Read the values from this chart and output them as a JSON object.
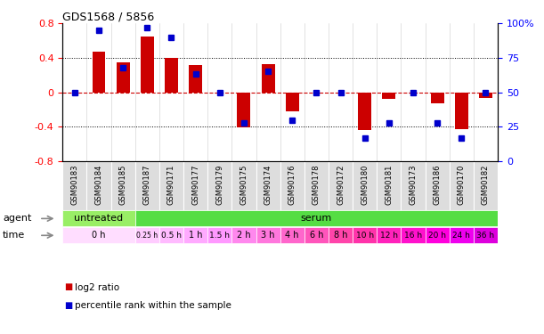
{
  "title": "GDS1568 / 5856",
  "samples": [
    "GSM90183",
    "GSM90184",
    "GSM90185",
    "GSM90187",
    "GSM90171",
    "GSM90177",
    "GSM90179",
    "GSM90175",
    "GSM90174",
    "GSM90176",
    "GSM90178",
    "GSM90172",
    "GSM90180",
    "GSM90181",
    "GSM90173",
    "GSM90186",
    "GSM90170",
    "GSM90182"
  ],
  "log2_ratio": [
    0.0,
    0.47,
    0.35,
    0.65,
    0.4,
    0.32,
    0.0,
    -0.41,
    0.33,
    -0.22,
    0.0,
    0.0,
    -0.44,
    -0.08,
    0.0,
    -0.13,
    -0.43,
    -0.07
  ],
  "percentile": [
    50,
    95,
    68,
    97,
    90,
    63,
    50,
    28,
    65,
    30,
    50,
    50,
    17,
    28,
    50,
    28,
    17,
    50
  ],
  "bar_color": "#cc0000",
  "dot_color": "#0000cc",
  "ylim_left": [
    -0.8,
    0.8
  ],
  "ylim_right": [
    0,
    100
  ],
  "yticks_left": [
    -0.8,
    -0.4,
    0.0,
    0.4,
    0.8
  ],
  "yticks_right": [
    0,
    25,
    50,
    75,
    100
  ],
  "ytick_labels_left": [
    "-0.8",
    "-0.4",
    "0",
    "0.4",
    "0.8"
  ],
  "ytick_labels_right": [
    "0",
    "25",
    "50",
    "75",
    "100%"
  ],
  "dotted_lines": [
    -0.4,
    0.4
  ],
  "agent_untreated_color": "#99ee66",
  "agent_serum_color": "#55dd44",
  "time_info": [
    {
      "label": "0 h",
      "xstart": -0.5,
      "xend": 2.5,
      "color": "#ffddff"
    },
    {
      "label": "0.25 h",
      "xstart": 2.5,
      "xend": 3.5,
      "color": "#ffccff"
    },
    {
      "label": "0.5 h",
      "xstart": 3.5,
      "xend": 4.5,
      "color": "#ffbbff"
    },
    {
      "label": "1 h",
      "xstart": 4.5,
      "xend": 5.5,
      "color": "#ffaaff"
    },
    {
      "label": "1.5 h",
      "xstart": 5.5,
      "xend": 6.5,
      "color": "#ff99ff"
    },
    {
      "label": "2 h",
      "xstart": 6.5,
      "xend": 7.5,
      "color": "#ff88ee"
    },
    {
      "label": "3 h",
      "xstart": 7.5,
      "xend": 8.5,
      "color": "#ff77dd"
    },
    {
      "label": "4 h",
      "xstart": 8.5,
      "xend": 9.5,
      "color": "#ff66cc"
    },
    {
      "label": "6 h",
      "xstart": 9.5,
      "xend": 10.5,
      "color": "#ff55bb"
    },
    {
      "label": "8 h",
      "xstart": 10.5,
      "xend": 11.5,
      "color": "#ff44aa"
    },
    {
      "label": "10 h",
      "xstart": 11.5,
      "xend": 12.5,
      "color": "#ff33aa"
    },
    {
      "label": "12 h",
      "xstart": 12.5,
      "xend": 13.5,
      "color": "#ff22bb"
    },
    {
      "label": "16 h",
      "xstart": 13.5,
      "xend": 14.5,
      "color": "#ff11cc"
    },
    {
      "label": "20 h",
      "xstart": 14.5,
      "xend": 15.5,
      "color": "#ff00dd"
    },
    {
      "label": "24 h",
      "xstart": 15.5,
      "xend": 16.5,
      "color": "#ee00ee"
    },
    {
      "label": "36 h",
      "xstart": 16.5,
      "xend": 17.5,
      "color": "#dd00dd"
    }
  ]
}
